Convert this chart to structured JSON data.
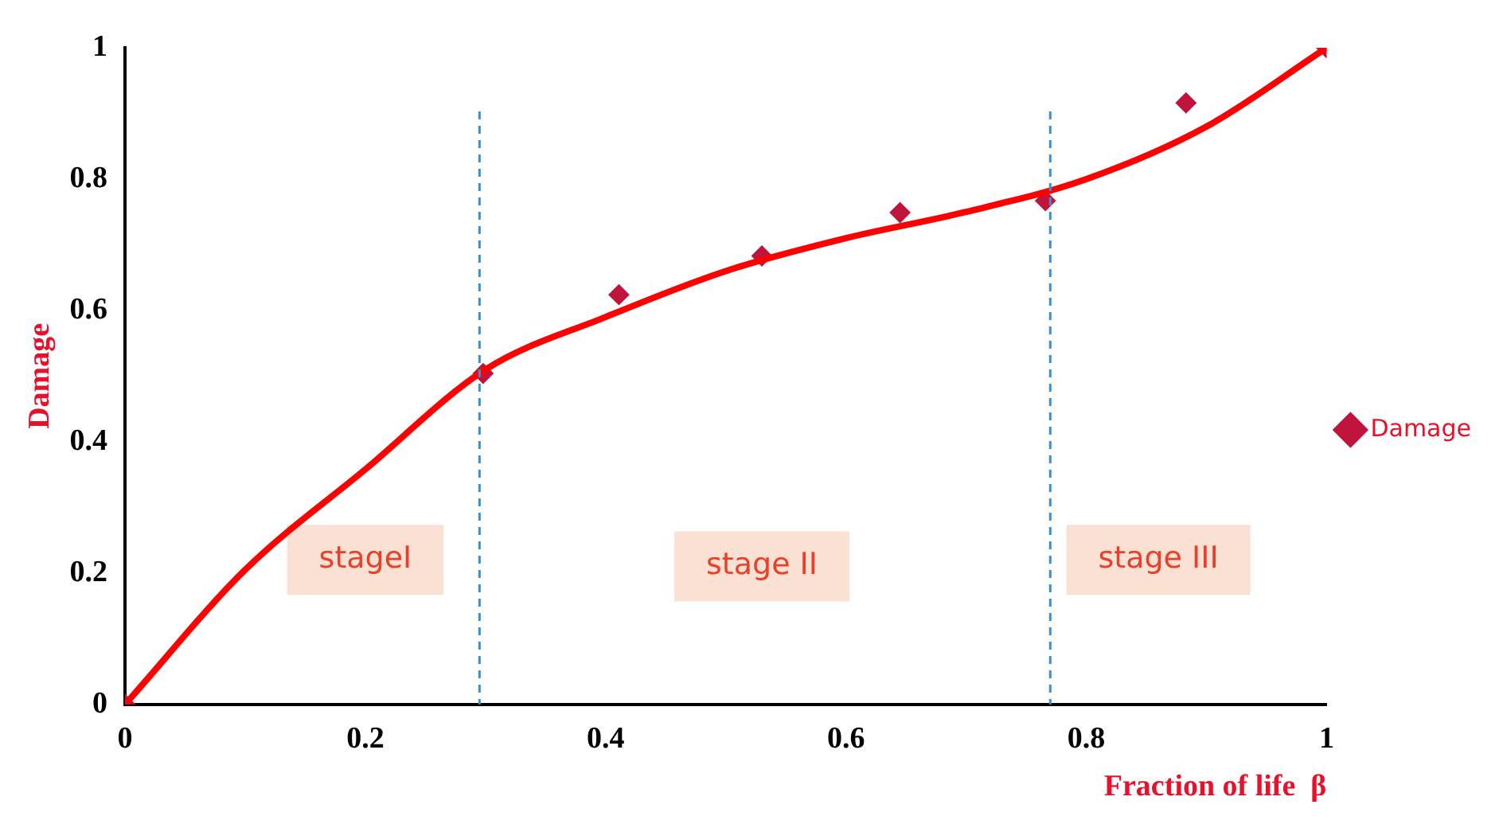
{
  "chart_data": {
    "type": "scatter",
    "xlabel": "Fraction of life  β",
    "ylabel": "Damage",
    "xlim": [
      0,
      1
    ],
    "ylim": [
      0,
      1
    ],
    "xticks": [
      0,
      0.2,
      0.4,
      0.6,
      0.8,
      1
    ],
    "yticks": [
      0,
      0.2,
      0.4,
      0.6,
      0.8,
      1
    ],
    "grid": false,
    "legend": "right",
    "series": [
      {
        "type": "line",
        "color": "#ff0000",
        "line_style": "solid",
        "marker": "none",
        "x": [
          0,
          0.1,
          0.2,
          0.3,
          0.4,
          0.5,
          0.6,
          0.7,
          0.8,
          0.9,
          1
        ],
        "values": [
          0,
          0.205,
          0.358,
          0.51,
          0.59,
          0.66,
          0.71,
          0.75,
          0.8,
          0.88,
          1
        ]
      },
      {
        "name": "Damage",
        "color": "#c0143c",
        "marker": "diamond",
        "x": [
          0,
          0.298,
          0.411,
          0.53,
          0.645,
          0.766,
          0.883,
          1
        ],
        "values": [
          0,
          0.504,
          0.624,
          0.683,
          0.749,
          0.767,
          0.916,
          1
        ]
      }
    ],
    "ref_lines": [
      {
        "axis": "x",
        "value": 0.295,
        "color": "#3a8fd8",
        "line_style": "dashed"
      },
      {
        "axis": "x",
        "value": 0.77,
        "color": "#3a8fd8",
        "line_style": "dashed"
      }
    ],
    "annotations": [
      "stageI",
      "stage II",
      "stage III"
    ]
  }
}
